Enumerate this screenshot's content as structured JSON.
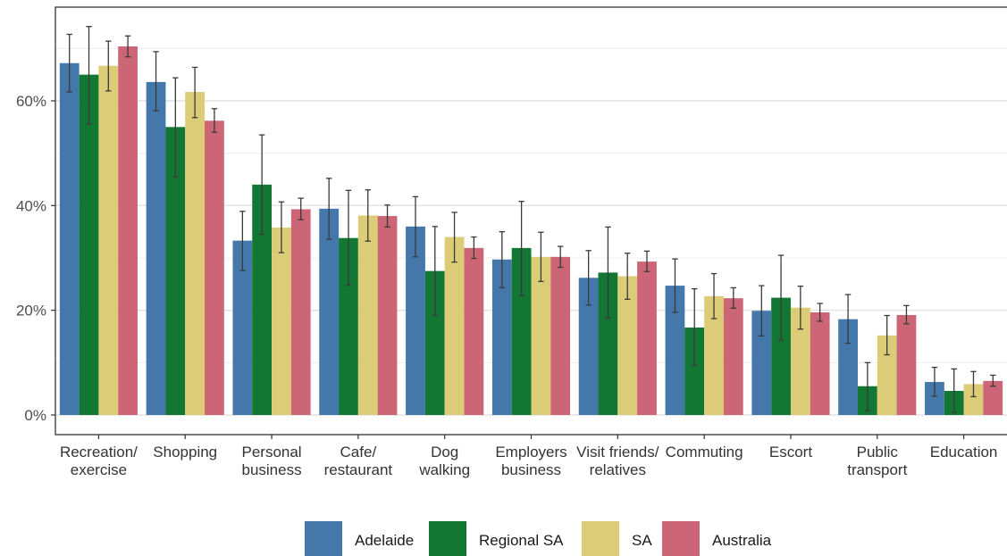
{
  "chart_data": {
    "type": "bar",
    "title": "",
    "xlabel": "",
    "ylabel": "",
    "ylim": [
      0,
      0.75
    ],
    "yticks": [
      0,
      0.2,
      0.4,
      0.6
    ],
    "ytick_labels": [
      "0%",
      "20%",
      "40%",
      "60%"
    ],
    "grid": true,
    "legend_position": "bottom",
    "categories": [
      [
        "Recreation/",
        "exercise"
      ],
      [
        "Shopping"
      ],
      [
        "Personal",
        "business"
      ],
      [
        "Cafe/",
        "restaurant"
      ],
      [
        "Dog",
        "walking"
      ],
      [
        "Employers",
        "business"
      ],
      [
        "Visit friends/",
        "relatives"
      ],
      [
        "Commuting"
      ],
      [
        "Escort"
      ],
      [
        "Public",
        "transport"
      ],
      [
        "Education"
      ]
    ],
    "series": [
      {
        "name": "Adelaide",
        "color": "#4477aa",
        "values": [
          0.672,
          0.636,
          0.333,
          0.394,
          0.36,
          0.297,
          0.262,
          0.247,
          0.199,
          0.183,
          0.063
        ],
        "error_low": [
          0.617,
          0.581,
          0.276,
          0.336,
          0.302,
          0.243,
          0.21,
          0.196,
          0.151,
          0.137,
          0.036
        ],
        "error_high": [
          0.727,
          0.694,
          0.389,
          0.452,
          0.417,
          0.35,
          0.314,
          0.298,
          0.247,
          0.23,
          0.091
        ]
      },
      {
        "name": "Regional SA",
        "color": "#117733",
        "values": [
          0.65,
          0.55,
          0.44,
          0.338,
          0.275,
          0.319,
          0.272,
          0.167,
          0.224,
          0.055,
          0.046
        ],
        "error_low": [
          0.556,
          0.455,
          0.345,
          0.248,
          0.19,
          0.228,
          0.185,
          0.095,
          0.143,
          0.008,
          0.005
        ],
        "error_high": [
          0.742,
          0.644,
          0.535,
          0.429,
          0.36,
          0.408,
          0.359,
          0.241,
          0.305,
          0.1,
          0.088
        ]
      },
      {
        "name": "SA",
        "color": "#ddcc77",
        "values": [
          0.667,
          0.617,
          0.358,
          0.381,
          0.34,
          0.302,
          0.265,
          0.227,
          0.205,
          0.152,
          0.059
        ],
        "error_low": [
          0.619,
          0.568,
          0.31,
          0.332,
          0.292,
          0.255,
          0.221,
          0.184,
          0.164,
          0.115,
          0.035
        ],
        "error_high": [
          0.714,
          0.664,
          0.407,
          0.43,
          0.387,
          0.349,
          0.309,
          0.27,
          0.246,
          0.19,
          0.083
        ]
      },
      {
        "name": "Australia",
        "color": "#cc6677",
        "values": [
          0.704,
          0.562,
          0.393,
          0.38,
          0.319,
          0.302,
          0.293,
          0.223,
          0.196,
          0.191,
          0.065
        ],
        "error_low": [
          0.684,
          0.54,
          0.373,
          0.359,
          0.299,
          0.282,
          0.274,
          0.204,
          0.179,
          0.174,
          0.055
        ],
        "error_high": [
          0.724,
          0.585,
          0.414,
          0.401,
          0.34,
          0.322,
          0.313,
          0.243,
          0.213,
          0.209,
          0.076
        ]
      }
    ]
  }
}
